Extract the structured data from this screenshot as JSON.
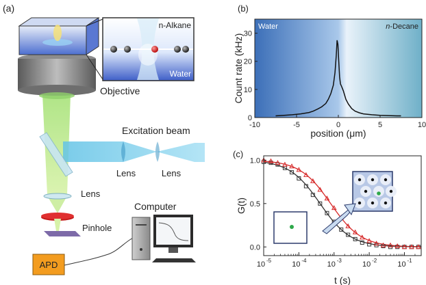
{
  "panel_a": {
    "label": "(a)",
    "inset_top_label": "n-Alkane",
    "inset_bottom_label": "Water",
    "objective_label": "Objective",
    "excitation_label": "Excitation beam",
    "lens_left_label": "Lens",
    "lens_right_label": "Lens",
    "lens_lower_label": "Lens",
    "pinhole_label": "Pinhole",
    "computer_label": "Computer",
    "apd_label": "APD"
  },
  "chart_data": [
    {
      "type": "line",
      "panel": "(b)",
      "xlabel": "position (μm)",
      "ylabel": "Count rate (kHz)",
      "xlim": [
        -10,
        10
      ],
      "ylim": [
        0,
        35
      ],
      "xticks": [
        "-10",
        "-5",
        "0",
        "5",
        "10"
      ],
      "yticks": [
        "0",
        "10",
        "20",
        "30"
      ],
      "region_left": "Water",
      "region_right_prefix": "n",
      "region_right_suffix": "-Decane",
      "series": [
        {
          "x": [
            -7.5,
            -6.5,
            -5.5,
            -4.5,
            -3.5,
            -3.0,
            -2.5,
            -2.0,
            -1.5,
            -1.2,
            -0.9,
            -0.6,
            -0.4,
            -0.25,
            -0.15,
            -0.05,
            0.05,
            0.15,
            0.25,
            0.4,
            0.6,
            0.9,
            1.2,
            1.6,
            2.0,
            2.5,
            3.0,
            4.0,
            5.0,
            6.0,
            7.0,
            7.5
          ],
          "y": [
            0.6,
            0.8,
            1.0,
            1.3,
            1.8,
            2.3,
            3.0,
            3.8,
            5.0,
            6.5,
            8.5,
            11.5,
            16.0,
            22.0,
            27.5,
            26.0,
            20.0,
            14.5,
            12.0,
            11.0,
            9.5,
            6.5,
            4.8,
            3.2,
            2.3,
            1.7,
            1.3,
            1.0,
            0.8,
            0.7,
            0.6,
            0.6
          ]
        }
      ]
    },
    {
      "type": "scatter",
      "panel": "(c)",
      "xlabel": "t (s)",
      "ylabel": "G(t)",
      "xscale": "log",
      "xlim": [
        1e-05,
        0.3
      ],
      "ylim": [
        -0.1,
        1.05
      ],
      "xtick_values": [
        1e-05,
        0.0001,
        0.001,
        0.01,
        0.1
      ],
      "xtick_mantissa": "10",
      "xtick_exponents": [
        "-5",
        "-4",
        "-3",
        "-2",
        "-1"
      ],
      "yticks": [
        "0.0",
        "0.5",
        "1.0"
      ],
      "series": [
        {
          "color": "#333333",
          "marker": "square",
          "fit_tau": 0.0004,
          "t": [
            1e-05,
            1.6e-05,
            2.5e-05,
            4e-05,
            6.3e-05,
            0.0001,
            0.00016,
            0.00025,
            0.0004,
            0.00063,
            0.001,
            0.0016,
            0.0025,
            0.004,
            0.0063,
            0.01,
            0.016,
            0.025,
            0.04,
            0.063,
            0.1,
            0.16,
            0.25
          ],
          "g": [
            0.98,
            0.97,
            0.95,
            0.91,
            0.86,
            0.79,
            0.7,
            0.6,
            0.5,
            0.39,
            0.29,
            0.2,
            0.14,
            0.09,
            0.05,
            0.03,
            0.02,
            0.01,
            0.0,
            0.0,
            0.0,
            0.0,
            0.0
          ]
        },
        {
          "color": "#d62828",
          "marker": "triangle",
          "fit_tau": 0.0008,
          "t": [
            1e-05,
            1.6e-05,
            2.5e-05,
            4e-05,
            6.3e-05,
            0.0001,
            0.00016,
            0.00025,
            0.0004,
            0.00063,
            0.001,
            0.0016,
            0.0025,
            0.004,
            0.0063,
            0.01,
            0.016,
            0.025,
            0.04,
            0.063,
            0.1,
            0.16,
            0.25
          ],
          "g": [
            1.0,
            0.99,
            0.97,
            0.95,
            0.93,
            0.89,
            0.83,
            0.76,
            0.66,
            0.56,
            0.45,
            0.34,
            0.24,
            0.17,
            0.11,
            0.07,
            0.04,
            0.02,
            0.02,
            0.01,
            0.0,
            0.0,
            0.0
          ]
        }
      ]
    }
  ]
}
